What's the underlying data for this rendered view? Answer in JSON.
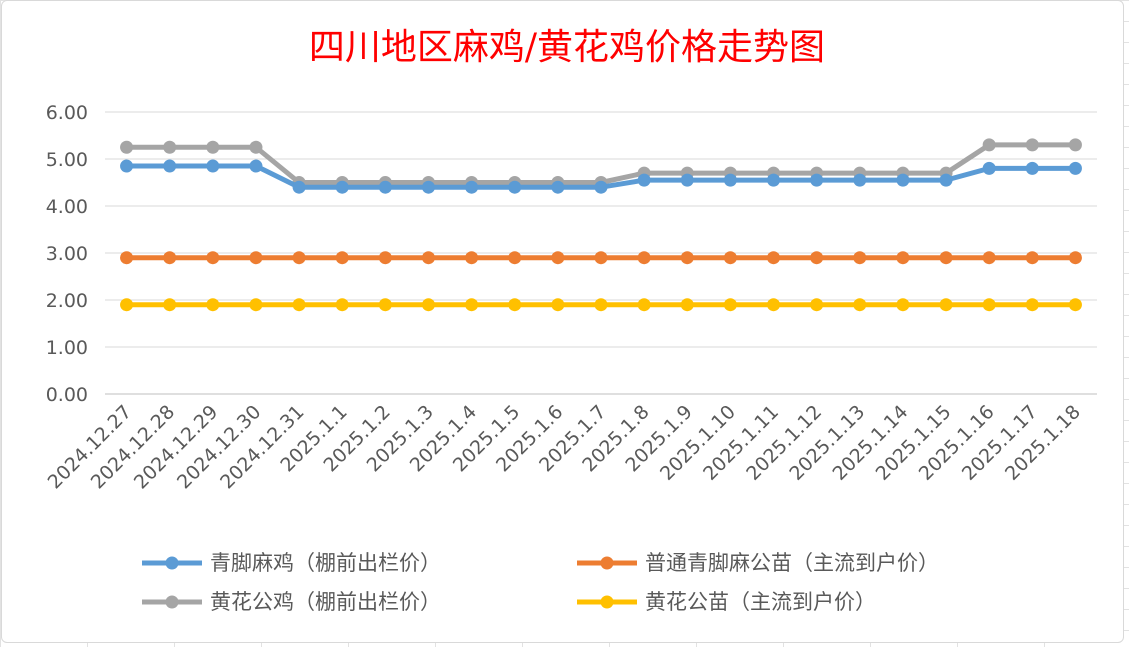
{
  "chart_data": {
    "type": "line",
    "title": "四川地区麻鸡/黄花鸡价格走势图",
    "categories": [
      "2024.12.27",
      "2024.12.28",
      "2024.12.29",
      "2024.12.30",
      "2024.12.31",
      "2025.1.1",
      "2025.1.2",
      "2025.1.3",
      "2025.1.4",
      "2025.1.5",
      "2025.1.6",
      "2025.1.7",
      "2025.1.8",
      "2025.1.9",
      "2025.1.10",
      "2025.1.11",
      "2025.1.12",
      "2025.1.13",
      "2025.1.14",
      "2025.1.15",
      "2025.1.16",
      "2025.1.17",
      "2025.1.18"
    ],
    "ylim": [
      0,
      6
    ],
    "yticks": [
      "0.00",
      "1.00",
      "2.00",
      "3.00",
      "4.00",
      "5.00",
      "6.00"
    ],
    "grid": true,
    "legend_position": "bottom",
    "series": [
      {
        "name": "青脚麻鸡（棚前出栏价）",
        "color": "#5b9bd5",
        "values": [
          4.85,
          4.85,
          4.85,
          4.85,
          4.4,
          4.4,
          4.4,
          4.4,
          4.4,
          4.4,
          4.4,
          4.4,
          4.55,
          4.55,
          4.55,
          4.55,
          4.55,
          4.55,
          4.55,
          4.55,
          4.8,
          4.8,
          4.8
        ]
      },
      {
        "name": "普通青脚麻公苗（主流到户价）",
        "color": "#ed7d31",
        "values": [
          2.9,
          2.9,
          2.9,
          2.9,
          2.9,
          2.9,
          2.9,
          2.9,
          2.9,
          2.9,
          2.9,
          2.9,
          2.9,
          2.9,
          2.9,
          2.9,
          2.9,
          2.9,
          2.9,
          2.9,
          2.9,
          2.9,
          2.9
        ]
      },
      {
        "name": "黄花公鸡（棚前出栏价）",
        "color": "#a5a5a5",
        "values": [
          5.25,
          5.25,
          5.25,
          5.25,
          4.5,
          4.5,
          4.5,
          4.5,
          4.5,
          4.5,
          4.5,
          4.5,
          4.7,
          4.7,
          4.7,
          4.7,
          4.7,
          4.7,
          4.7,
          4.7,
          5.3,
          5.3,
          5.3
        ]
      },
      {
        "name": "黄花公苗（主流到户价）",
        "color": "#ffc000",
        "values": [
          1.9,
          1.9,
          1.9,
          1.9,
          1.9,
          1.9,
          1.9,
          1.9,
          1.9,
          1.9,
          1.9,
          1.9,
          1.9,
          1.9,
          1.9,
          1.9,
          1.9,
          1.9,
          1.9,
          1.9,
          1.9,
          1.9,
          1.9
        ]
      }
    ]
  }
}
